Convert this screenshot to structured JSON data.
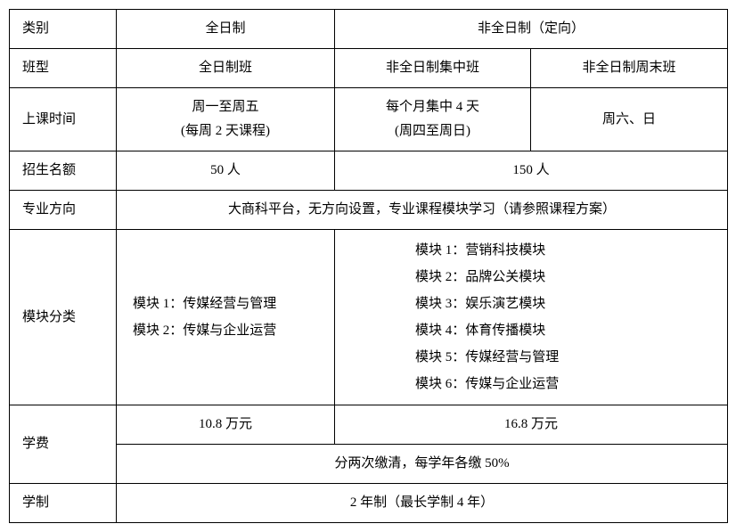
{
  "table": {
    "labels": {
      "category": "类别",
      "classType": "班型",
      "schedule": "上课时间",
      "quota": "招生名额",
      "major": "专业方向",
      "modules": "模块分类",
      "tuition": "学费",
      "duration": "学制"
    },
    "category": {
      "fulltime": "全日制",
      "parttime": "非全日制（定向）"
    },
    "classType": {
      "fulltime": "全日制班",
      "pt_concentrated": "非全日制集中班",
      "pt_weekend": "非全日制周末班"
    },
    "schedule": {
      "fulltime": "周一至周五\n(每周 2 天课程)",
      "pt_concentrated": "每个月集中 4 天\n(周四至周日)",
      "pt_weekend": "周六、日"
    },
    "quota": {
      "fulltime": "50 人",
      "parttime": "150 人"
    },
    "major": {
      "text": "大商科平台，无方向设置，专业课程模块学习（请参照课程方案）"
    },
    "modules": {
      "fulltime": "模块 1：传媒经营与管理\n模块 2：传媒与企业运营",
      "parttime": "模块 1：营销科技模块\n模块 2：品牌公关模块\n模块 3：娱乐演艺模块\n模块 4：体育传播模块\n模块 5：传媒经营与管理\n模块 6：传媒与企业运营"
    },
    "tuition": {
      "fulltime": "10.8 万元",
      "parttime": "16.8 万元",
      "payment": "分两次缴清，每学年各缴 50%"
    },
    "duration": {
      "text": "2 年制（最长学制 4 年）"
    }
  }
}
